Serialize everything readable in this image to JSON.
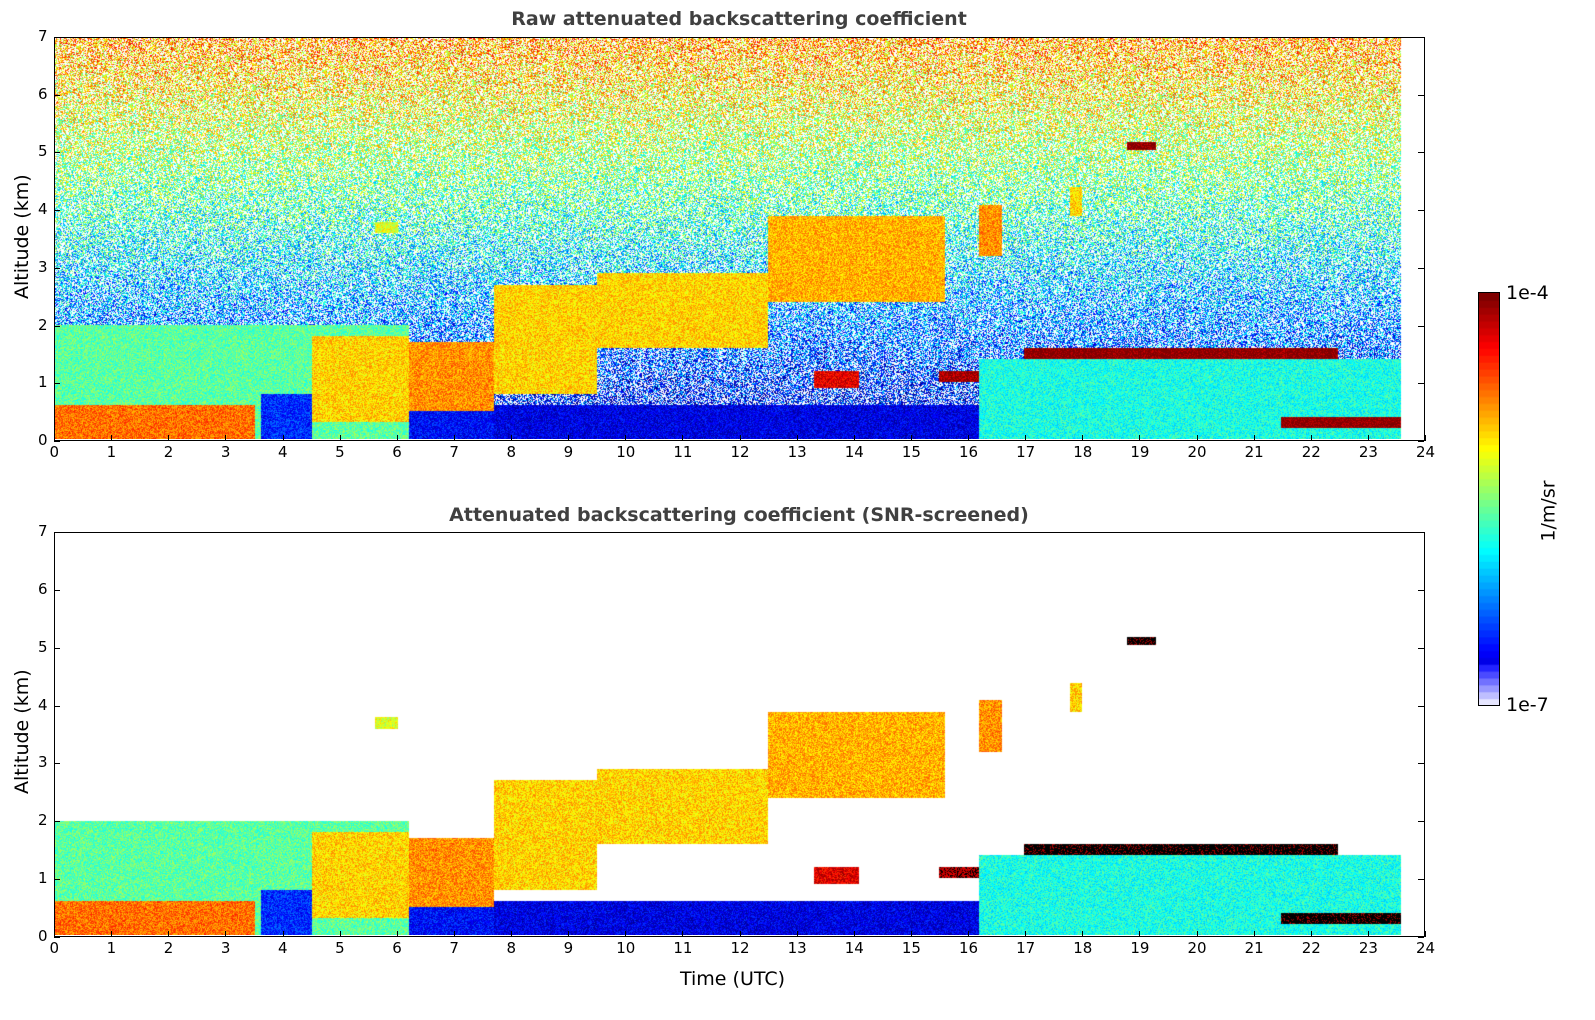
{
  "chart_data": [
    {
      "type": "heatmap",
      "title": "Raw attenuated backscattering coefficient",
      "xlabel": "",
      "ylabel": "Altitude (km)",
      "xlim": [
        0,
        24
      ],
      "ylim": [
        0,
        7
      ],
      "xticks": [
        "0",
        "1",
        "2",
        "3",
        "4",
        "5",
        "6",
        "7",
        "8",
        "9",
        "10",
        "11",
        "12",
        "13",
        "14",
        "15",
        "16",
        "17",
        "18",
        "19",
        "20",
        "21",
        "22",
        "23",
        "24"
      ],
      "yticks": [
        "0",
        "1",
        "2",
        "3",
        "4",
        "5",
        "6",
        "7"
      ],
      "data_end_time": 23.6,
      "noise": true,
      "layers": [
        {
          "t0": 0.0,
          "t1": 6.2,
          "z0": 0.0,
          "z1": 2.0,
          "log": -5.6
        },
        {
          "t0": 0.0,
          "t1": 3.5,
          "z0": 0.0,
          "z1": 0.6,
          "log": -4.7
        },
        {
          "t0": 3.6,
          "t1": 4.5,
          "z0": 0.0,
          "z1": 0.8,
          "log": -6.5
        },
        {
          "t0": 4.5,
          "t1": 6.2,
          "z0": 0.3,
          "z1": 1.8,
          "log": -5.0
        },
        {
          "t0": 6.2,
          "t1": 7.7,
          "z0": 0.5,
          "z1": 1.7,
          "log": -4.8
        },
        {
          "t0": 6.2,
          "t1": 7.7,
          "z0": 0.0,
          "z1": 0.5,
          "log": -6.6
        },
        {
          "t0": 7.7,
          "t1": 9.5,
          "z0": 0.8,
          "z1": 2.7,
          "log": -5.0
        },
        {
          "t0": 9.5,
          "t1": 12.5,
          "z0": 1.6,
          "z1": 2.9,
          "log": -5.0
        },
        {
          "t0": 12.5,
          "t1": 15.6,
          "z0": 2.4,
          "z1": 3.9,
          "log": -4.9
        },
        {
          "t0": 16.2,
          "t1": 16.6,
          "z0": 3.2,
          "z1": 4.1,
          "log": -4.8
        },
        {
          "t0": 7.7,
          "t1": 16.2,
          "z0": 0.0,
          "z1": 0.6,
          "log": -6.7
        },
        {
          "t0": 16.2,
          "t1": 23.6,
          "z0": 0.0,
          "z1": 1.4,
          "log": -5.8
        },
        {
          "t0": 13.3,
          "t1": 14.1,
          "z0": 0.9,
          "z1": 1.2,
          "log": -4.3
        },
        {
          "t0": 15.5,
          "t1": 16.2,
          "z0": 1.0,
          "z1": 1.2,
          "log": -4.1
        },
        {
          "t0": 17.0,
          "t1": 22.5,
          "z0": 1.4,
          "z1": 1.6,
          "log": -4.0
        },
        {
          "t0": 21.5,
          "t1": 23.6,
          "z0": 0.2,
          "z1": 0.4,
          "log": -4.0
        },
        {
          "t0": 18.8,
          "t1": 19.3,
          "z0": 5.05,
          "z1": 5.2,
          "log": -4.0
        },
        {
          "t0": 5.6,
          "t1": 6.0,
          "z0": 3.6,
          "z1": 3.8,
          "log": -5.2
        },
        {
          "t0": 17.8,
          "t1": 18.0,
          "z0": 3.9,
          "z1": 4.4,
          "log": -5.0
        }
      ]
    },
    {
      "type": "heatmap",
      "title": "Attenuated backscattering coefficient (SNR-screened)",
      "xlabel": "Time (UTC)",
      "ylabel": "Altitude (km)",
      "xlim": [
        0,
        24
      ],
      "ylim": [
        0,
        7
      ],
      "xticks": [
        "0",
        "1",
        "2",
        "3",
        "4",
        "5",
        "6",
        "7",
        "8",
        "9",
        "10",
        "11",
        "12",
        "13",
        "14",
        "15",
        "16",
        "17",
        "18",
        "19",
        "20",
        "21",
        "22",
        "23",
        "24"
      ],
      "yticks": [
        "0",
        "1",
        "2",
        "3",
        "4",
        "5",
        "6",
        "7"
      ],
      "data_end_time": 23.6,
      "noise": false,
      "layers": [
        {
          "t0": 0.0,
          "t1": 6.2,
          "z0": 0.0,
          "z1": 2.0,
          "log": -5.6
        },
        {
          "t0": 0.0,
          "t1": 3.5,
          "z0": 0.0,
          "z1": 0.6,
          "log": -4.7
        },
        {
          "t0": 3.6,
          "t1": 4.5,
          "z0": 0.0,
          "z1": 0.8,
          "log": -6.5
        },
        {
          "t0": 4.5,
          "t1": 6.2,
          "z0": 0.3,
          "z1": 1.8,
          "log": -5.0
        },
        {
          "t0": 6.2,
          "t1": 7.7,
          "z0": 0.5,
          "z1": 1.7,
          "log": -4.8
        },
        {
          "t0": 6.2,
          "t1": 7.7,
          "z0": 0.0,
          "z1": 0.5,
          "log": -6.6
        },
        {
          "t0": 7.7,
          "t1": 9.5,
          "z0": 0.8,
          "z1": 2.7,
          "log": -5.0
        },
        {
          "t0": 9.5,
          "t1": 12.5,
          "z0": 1.6,
          "z1": 2.9,
          "log": -5.0
        },
        {
          "t0": 12.5,
          "t1": 15.6,
          "z0": 2.4,
          "z1": 3.9,
          "log": -4.9
        },
        {
          "t0": 16.2,
          "t1": 16.6,
          "z0": 3.2,
          "z1": 4.1,
          "log": -4.8
        },
        {
          "t0": 7.7,
          "t1": 16.2,
          "z0": 0.0,
          "z1": 0.6,
          "log": -6.7
        },
        {
          "t0": 16.2,
          "t1": 23.6,
          "z0": 0.0,
          "z1": 1.4,
          "log": -5.8
        },
        {
          "t0": 13.3,
          "t1": 14.1,
          "z0": 0.9,
          "z1": 1.2,
          "log": -4.3
        },
        {
          "t0": 15.5,
          "t1": 16.2,
          "z0": 1.0,
          "z1": 1.2,
          "log": -4.1
        },
        {
          "t0": 17.0,
          "t1": 22.5,
          "z0": 1.4,
          "z1": 1.6,
          "log": -3.9
        },
        {
          "t0": 21.5,
          "t1": 23.6,
          "z0": 0.2,
          "z1": 0.4,
          "log": -3.9
        },
        {
          "t0": 18.8,
          "t1": 19.3,
          "z0": 5.05,
          "z1": 5.2,
          "log": -3.9
        },
        {
          "t0": 5.6,
          "t1": 6.0,
          "z0": 3.6,
          "z1": 3.8,
          "log": -5.2
        },
        {
          "t0": 17.8,
          "t1": 18.0,
          "z0": 3.9,
          "z1": 4.4,
          "log": -5.0
        }
      ]
    }
  ],
  "colorbar": {
    "label": "1/m/sr",
    "max_label": "1e-4",
    "min_label": "1e-7",
    "vmin_log": -7,
    "vmax_log": -4
  }
}
